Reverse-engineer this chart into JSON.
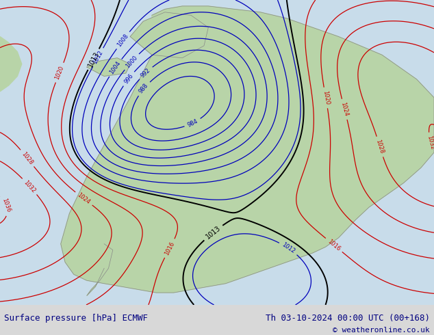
{
  "title_left": "Surface pressure [hPa] ECMWF",
  "title_right": "Th 03-10-2024 00:00 UTC (00+168)",
  "copyright": "© weatheronline.co.uk",
  "bg_color": "#c8dcea",
  "land_color": "#b8d4a8",
  "border_color": "#888888",
  "text_color_left": "#000080",
  "text_color_right": "#000080",
  "strip_color": "#d8d8d8",
  "figsize": [
    6.34,
    4.9
  ],
  "dpi": 100
}
